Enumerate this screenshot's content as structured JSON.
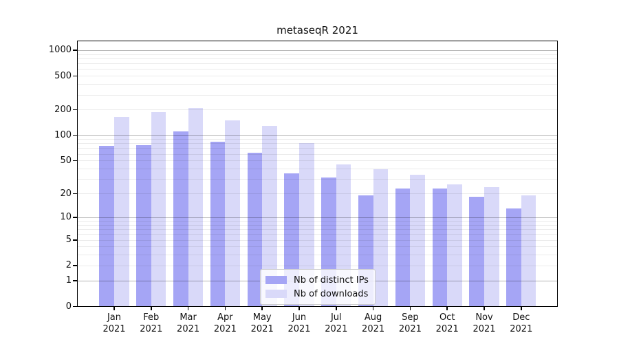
{
  "chart_data": {
    "type": "bar",
    "title": "metaseqR 2021",
    "categories": [
      "Jan",
      "Feb",
      "Mar",
      "Apr",
      "May",
      "Jun",
      "Jul",
      "Aug",
      "Sep",
      "Oct",
      "Nov",
      "Dec"
    ],
    "year_label": "2021",
    "series": [
      {
        "name": "Nb of distinct IPs",
        "color": "#a5a5f5",
        "values": [
          75,
          76,
          110,
          83,
          62,
          35,
          31,
          19,
          23,
          23,
          18,
          13
        ]
      },
      {
        "name": "Nb of downloads",
        "color": "#d9d9f9",
        "values": [
          165,
          188,
          208,
          150,
          128,
          80,
          45,
          39,
          34,
          26,
          24,
          19
        ]
      }
    ],
    "y_ticks": [
      0,
      1,
      2,
      5,
      10,
      20,
      50,
      100,
      200,
      500,
      1000
    ],
    "y_scale": "log10(1+x)",
    "ylim": [
      0,
      1000
    ],
    "grid": "horizontal, log major and minor lines drawn over bars",
    "legend_position": "inside bottom-center"
  }
}
